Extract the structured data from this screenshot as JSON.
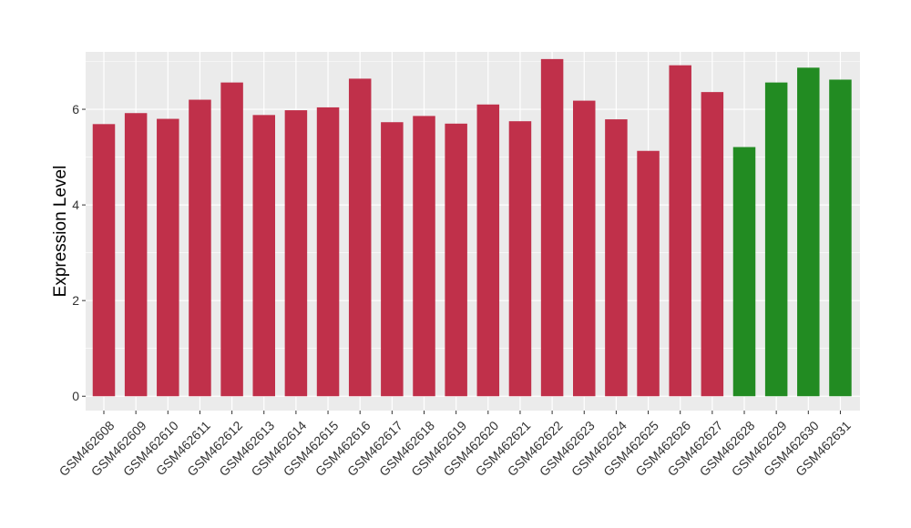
{
  "chart_data": {
    "type": "bar",
    "title": "",
    "xlabel": "",
    "ylabel": "Expression Level",
    "ylim": [
      -0.3,
      7.2
    ],
    "yticks": [
      0,
      2,
      4,
      6
    ],
    "grid": true,
    "legend": "none",
    "background_color": "#ebebeb",
    "grid_color": "#ffffff",
    "categories": [
      "GSM462608",
      "GSM462609",
      "GSM462610",
      "GSM462611",
      "GSM462612",
      "GSM462613",
      "GSM462614",
      "GSM462615",
      "GSM462616",
      "GSM462617",
      "GSM462618",
      "GSM462619",
      "GSM462620",
      "GSM462621",
      "GSM462622",
      "GSM462623",
      "GSM462624",
      "GSM462625",
      "GSM462626",
      "GSM462627",
      "GSM462628",
      "GSM462629",
      "GSM462630",
      "GSM462631"
    ],
    "values": [
      5.69,
      5.92,
      5.8,
      6.2,
      6.56,
      5.88,
      5.98,
      6.04,
      6.64,
      5.73,
      5.86,
      5.7,
      6.1,
      5.75,
      7.05,
      6.18,
      5.79,
      5.13,
      6.92,
      6.36,
      5.21,
      6.56,
      6.87,
      6.62
    ],
    "bar_colors": [
      "#c0304a",
      "#c0304a",
      "#c0304a",
      "#c0304a",
      "#c0304a",
      "#c0304a",
      "#c0304a",
      "#c0304a",
      "#c0304a",
      "#c0304a",
      "#c0304a",
      "#c0304a",
      "#c0304a",
      "#c0304a",
      "#c0304a",
      "#c0304a",
      "#c0304a",
      "#c0304a",
      "#c0304a",
      "#c0304a",
      "#228b22",
      "#228b22",
      "#228b22",
      "#228b22"
    ]
  }
}
